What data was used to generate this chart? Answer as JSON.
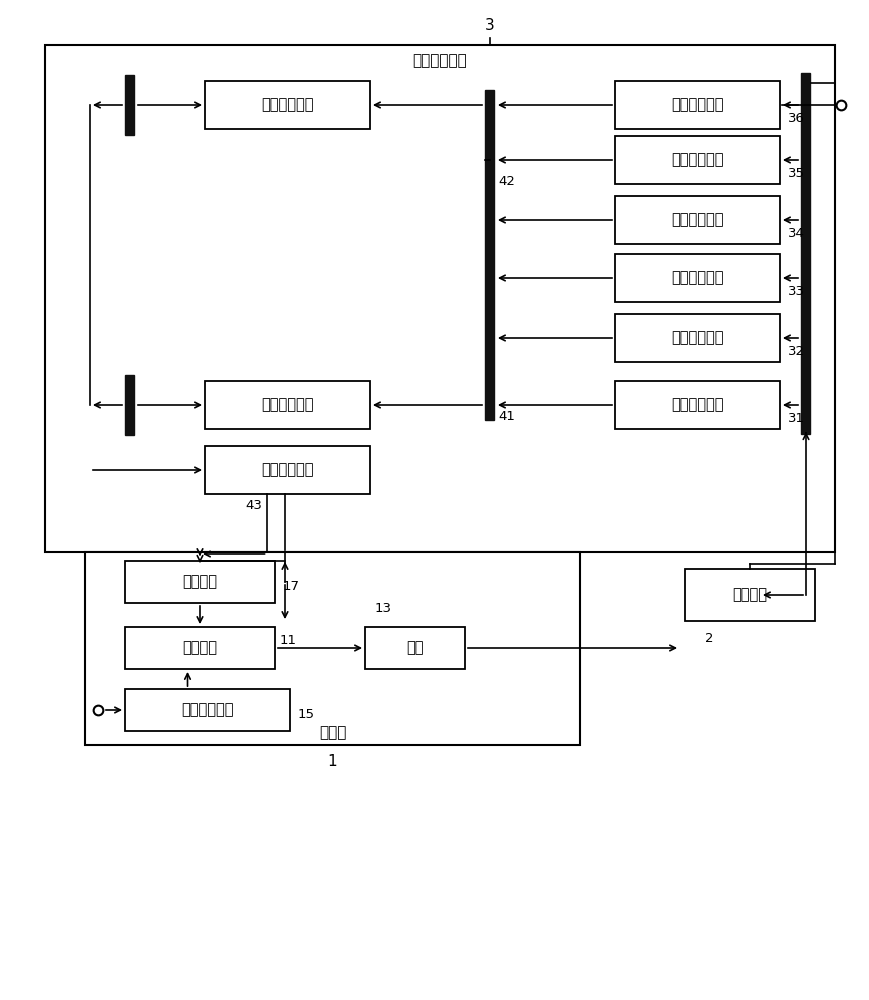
{
  "bg_color": "#ffffff",
  "box_color": "#ffffff",
  "box_edge": "#000000",
  "text_color": "#000000",
  "line_color": "#000000",
  "thick_bar_color": "#111111",
  "top_box_label": "增益调整装置",
  "top_box_num": "3",
  "receive_modules": [
    "第六接收模块",
    "第五接收模块",
    "第四接收模块",
    "第三接收模块",
    "第二接收模块",
    "第一接收模块"
  ],
  "receive_nums": [
    "36",
    "35",
    "34",
    "33",
    "32",
    "31"
  ],
  "calc2_label": "第二计算模块",
  "calc2_num": "42",
  "calc1_label": "第一计算模块",
  "calc1_num": "41",
  "calc3_label": "第三计算模块",
  "calc3_num": "43",
  "bottom_box_label": "显示器",
  "bottom_box_num": "1",
  "stor_label": "储存单元",
  "stor_num": "17",
  "ctrl_label": "控制单元",
  "ctrl_num": "11",
  "imgp_label": "影像处理单元",
  "imgp_num": "15",
  "panel_label": "面板",
  "panel_num": "13",
  "meas_label": "测量装置",
  "meas_num": "2"
}
